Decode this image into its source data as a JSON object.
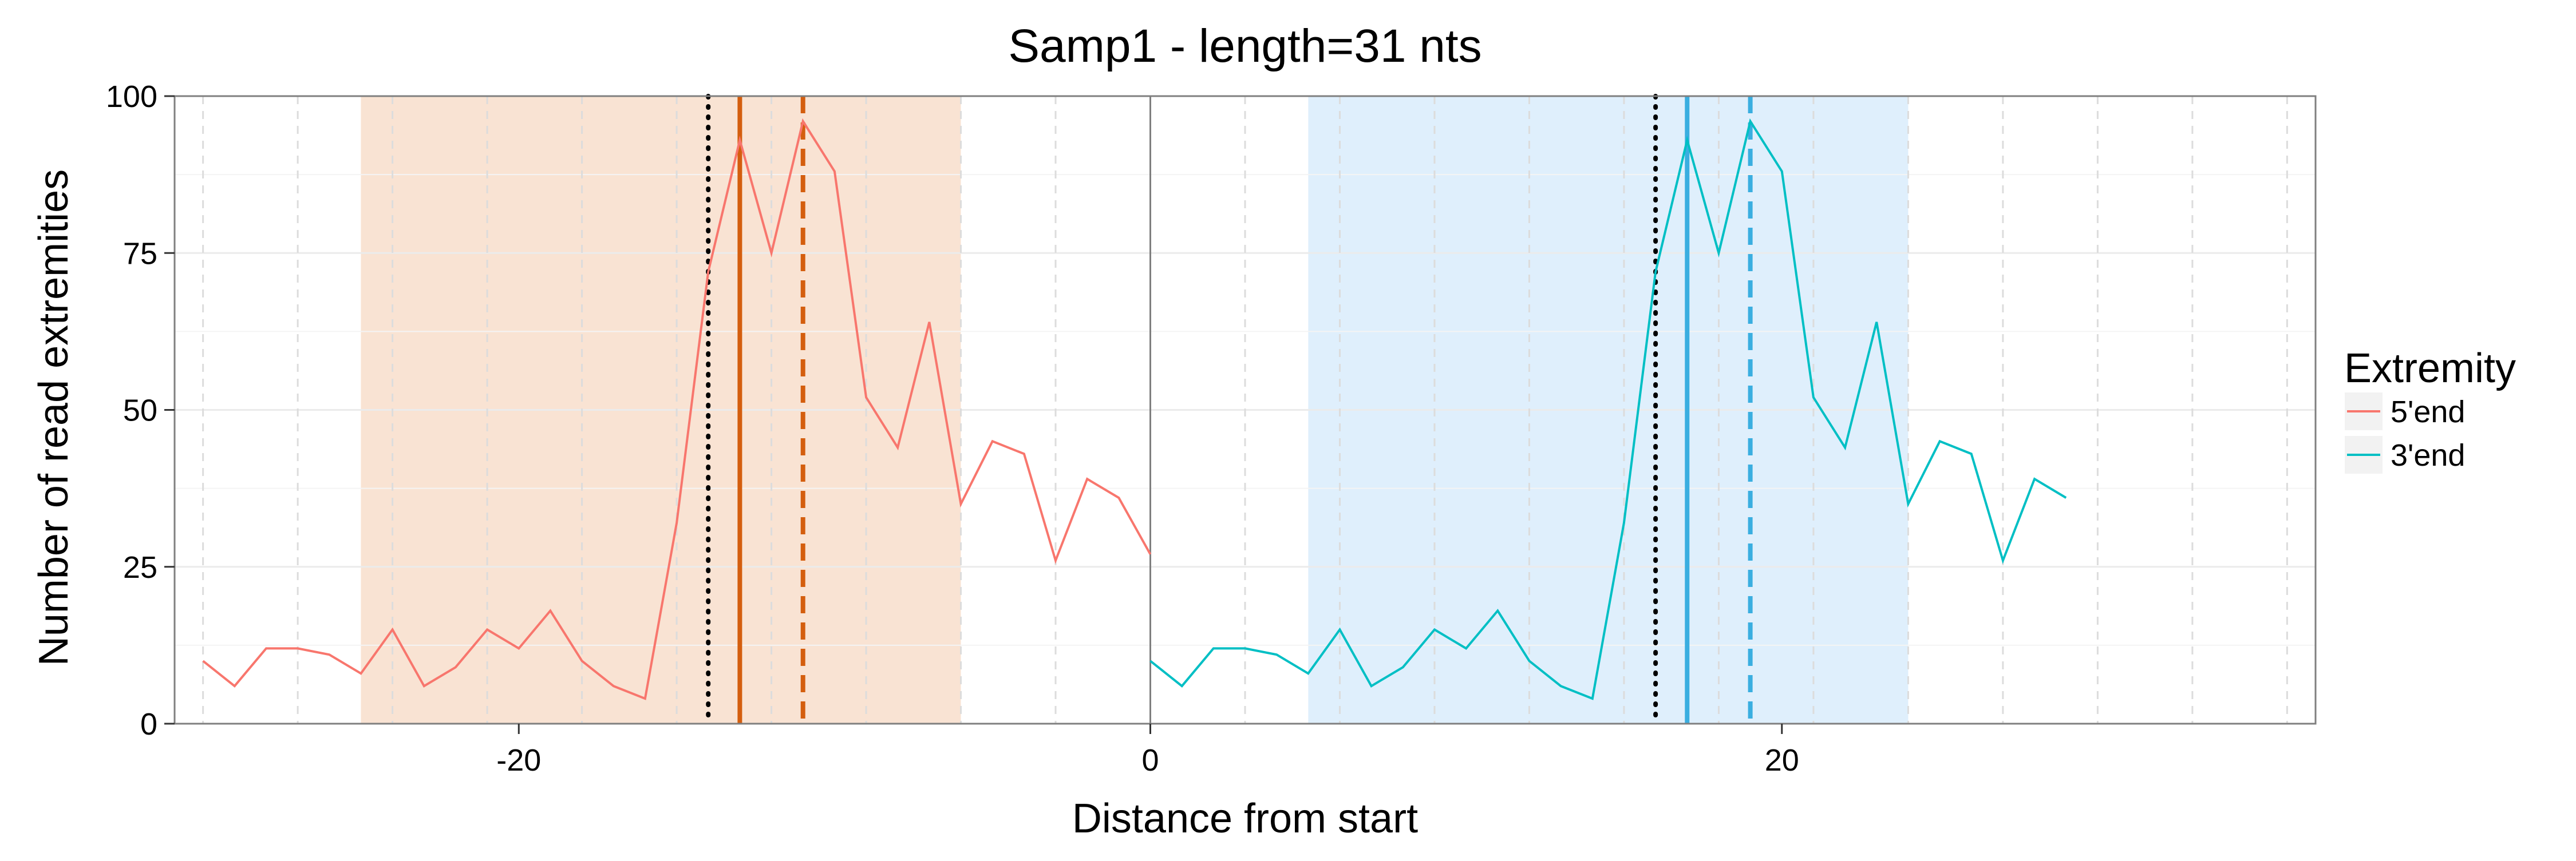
{
  "chart_data": {
    "type": "line",
    "title": "Samp1 - length=31 nts",
    "xlabel": "Distance from start",
    "ylabel": "Number of read extremities",
    "xlim": [
      -30.9,
      36.9
    ],
    "ylim": [
      0,
      100
    ],
    "x_ticks": [
      -20,
      0,
      20
    ],
    "x_tick_labels": [
      "-20",
      "0",
      "20"
    ],
    "y_ticks": [
      0,
      25,
      50,
      75,
      100
    ],
    "y_tick_labels": [
      "0",
      "25",
      "50",
      "75",
      "100"
    ],
    "grid": true,
    "legend": {
      "title": "Extremity",
      "position": "right",
      "entries": [
        {
          "label": "5'end",
          "color": "#F8766D"
        },
        {
          "label": "3'end",
          "color": "#00BFC4"
        }
      ]
    },
    "series": [
      {
        "name": "5'end",
        "color": "#F8766D",
        "x": [
          -30,
          -29,
          -28,
          -27,
          -26,
          -25,
          -24,
          -23,
          -22,
          -21,
          -20,
          -19,
          -18,
          -17,
          -16,
          -15,
          -14,
          -13,
          -12,
          -11,
          -10,
          -9,
          -8,
          -7,
          -6,
          -5,
          -4,
          -3,
          -2,
          -1,
          0
        ],
        "values": [
          10,
          6,
          12,
          12,
          11,
          8,
          15,
          6,
          9,
          15,
          12,
          18,
          10,
          6,
          4,
          32,
          72,
          93,
          75,
          96,
          88,
          52,
          44,
          64,
          35,
          45,
          43,
          26,
          39,
          36,
          27
        ]
      },
      {
        "name": "3'end",
        "color": "#00BFC4",
        "x": [
          0,
          1,
          2,
          3,
          4,
          5,
          6,
          7,
          8,
          9,
          10,
          11,
          12,
          13,
          14,
          15,
          16,
          17,
          18,
          19,
          20,
          21,
          22,
          23,
          24,
          25,
          26,
          27,
          28,
          29
        ],
        "values": [
          10,
          6,
          12,
          12,
          11,
          8,
          15,
          6,
          9,
          15,
          12,
          18,
          10,
          6,
          4,
          32,
          72,
          93,
          75,
          96,
          88,
          52,
          44,
          64,
          35,
          45,
          43,
          26,
          39,
          36
        ]
      }
    ],
    "shaded_regions": [
      {
        "from": -25,
        "to": -6,
        "color": "#F9E3D3"
      },
      {
        "from": 5,
        "to": 24,
        "color": "#DFEFFC"
      }
    ],
    "reference_lines": [
      {
        "x": -14,
        "style": "dotted",
        "color": "#000000"
      },
      {
        "x": -13,
        "style": "solid",
        "color": "#D45E0E"
      },
      {
        "x": -11,
        "style": "dashed",
        "color": "#D45E0E"
      },
      {
        "x": 0,
        "style": "solid-thin",
        "color": "#7F7F7F"
      },
      {
        "x": 16,
        "style": "dotted",
        "color": "#000000"
      },
      {
        "x": 17,
        "style": "solid",
        "color": "#3AAEE0"
      },
      {
        "x": 19,
        "style": "dashed",
        "color": "#3AAEE0"
      }
    ]
  }
}
